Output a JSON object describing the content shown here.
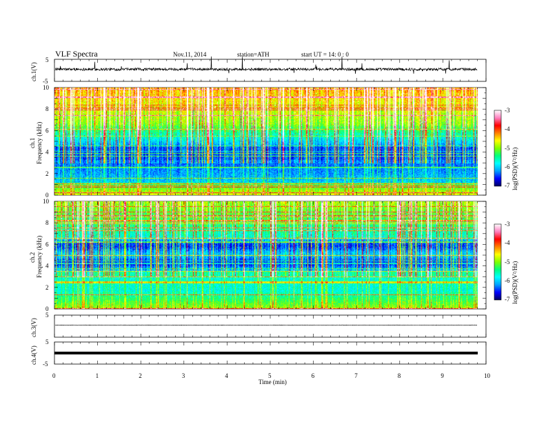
{
  "header": {
    "title": "VLF  Spectra",
    "date": "Nov.11, 2014",
    "station": "station=ATH",
    "start": "start  UT  =   14: 0  : 0"
  },
  "colors": {
    "spectrogram_palette": [
      "#00006e",
      "#0000ff",
      "#00a0ff",
      "#00ffff",
      "#00ff80",
      "#80ff00",
      "#ffff00",
      "#ff8000",
      "#ff0000",
      "#ff80ff",
      "#ffffff"
    ],
    "trace": "#000000",
    "axes": "#000000"
  },
  "chart_data": [
    {
      "type": "line",
      "name": "ch1-waveform",
      "ylabel": "ch.1(V)",
      "ylim": [
        -5,
        5
      ],
      "yticks": [
        "5",
        "-5"
      ],
      "x_range_min": [
        0,
        9.8
      ],
      "baseline_v": 0,
      "noise_v": 1.2
    },
    {
      "type": "heatmap",
      "name": "ch1-spectrogram",
      "channel_label": "ch.1",
      "ylabel": "Frequency  (kHz)",
      "ylim": [
        0,
        10
      ],
      "yticks": [
        "0",
        "2",
        "4",
        "6",
        "8",
        "10"
      ],
      "colorbar": {
        "label": "log(PSD)(V²/Hz)",
        "range": [
          -7,
          -3
        ],
        "ticks": [
          "-3",
          "-4",
          "-5",
          "-6",
          "-7"
        ]
      }
    },
    {
      "type": "heatmap",
      "name": "ch2-spectrogram",
      "channel_label": "ch.2",
      "ylabel": "Frequency  (kHz)",
      "ylim": [
        0,
        10
      ],
      "yticks": [
        "0",
        "2",
        "4",
        "6",
        "8",
        "10"
      ],
      "colorbar": {
        "label": "log(PSD)(V²/Hz)",
        "range": [
          -7,
          -3
        ],
        "ticks": [
          "-3",
          "-4",
          "-5",
          "-6",
          "-7"
        ]
      }
    },
    {
      "type": "line",
      "name": "ch3-waveform",
      "ylabel": "ch.3(V)",
      "ylim": [
        -5,
        5
      ],
      "yticks": [
        "5",
        "-5"
      ],
      "baseline_v": 0,
      "noise_v": 0.2
    },
    {
      "type": "line",
      "name": "ch4-waveform",
      "ylabel": "ch.4(V)",
      "ylim": [
        -5,
        5
      ],
      "yticks": [
        "5",
        "-5"
      ],
      "baseline_v": 0,
      "noise_v": 0.4
    }
  ],
  "xaxis": {
    "label": "Time  (min)",
    "xlim": [
      0,
      10
    ],
    "ticks": [
      "0",
      "1",
      "2",
      "3",
      "4",
      "5",
      "6",
      "7",
      "8",
      "9",
      "10"
    ]
  }
}
